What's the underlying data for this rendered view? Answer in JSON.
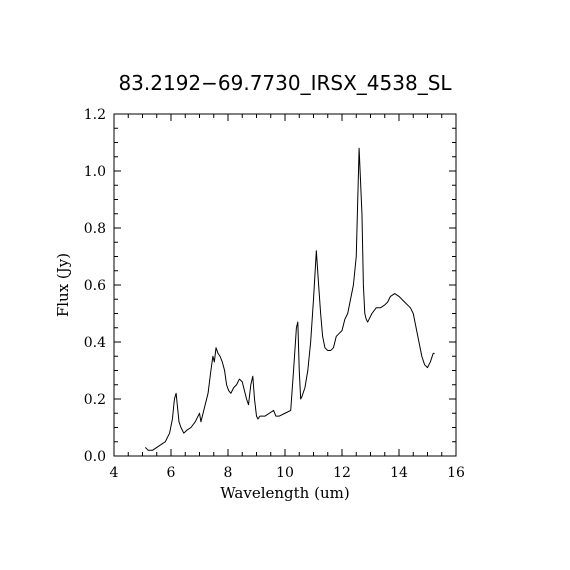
{
  "chart_data": {
    "type": "line",
    "title": "83.2192−69.7730_IRSX_4538_SL",
    "xlabel": "Wavelength (um)",
    "ylabel": "Flux (Jy)",
    "xlim": [
      4,
      16
    ],
    "ylim": [
      0.0,
      1.2
    ],
    "xticks": [
      4,
      6,
      8,
      10,
      12,
      14,
      16
    ],
    "xtick_labels": [
      "4",
      "6",
      "8",
      "10",
      "12",
      "14",
      "16"
    ],
    "yticks": [
      0.0,
      0.2,
      0.4,
      0.6,
      0.8,
      1.0,
      1.2
    ],
    "ytick_labels": [
      "0.0",
      "0.2",
      "0.4",
      "0.6",
      "0.8",
      "1.0",
      "1.2"
    ],
    "grid": false,
    "series": [
      {
        "color": "#000000",
        "x": [
          5.1,
          5.2,
          5.35,
          5.5,
          5.65,
          5.8,
          5.95,
          6.05,
          6.12,
          6.18,
          6.22,
          6.28,
          6.35,
          6.45,
          6.55,
          6.7,
          6.85,
          7.0,
          7.05,
          7.15,
          7.3,
          7.4,
          7.47,
          7.52,
          7.58,
          7.65,
          7.72,
          7.8,
          7.88,
          7.95,
          8.02,
          8.1,
          8.2,
          8.3,
          8.4,
          8.5,
          8.6,
          8.65,
          8.72,
          8.8,
          8.87,
          8.93,
          9.0,
          9.05,
          9.12,
          9.2,
          9.3,
          9.45,
          9.6,
          9.68,
          9.8,
          10.0,
          10.2,
          10.3,
          10.4,
          10.45,
          10.5,
          10.55,
          10.6,
          10.7,
          10.8,
          10.9,
          11.0,
          11.1,
          11.18,
          11.25,
          11.32,
          11.4,
          11.5,
          11.6,
          11.7,
          11.8,
          11.9,
          12.0,
          12.1,
          12.2,
          12.3,
          12.4,
          12.5,
          12.6,
          12.7,
          12.75,
          12.8,
          12.85,
          12.9,
          12.95,
          13.05,
          13.2,
          13.35,
          13.5,
          13.6,
          13.7,
          13.85,
          14.0,
          14.1,
          14.2,
          14.3,
          14.4,
          14.5,
          14.6,
          14.7,
          14.8,
          14.9,
          15.0,
          15.1,
          15.2,
          15.25
        ],
        "y": [
          0.03,
          0.02,
          0.02,
          0.03,
          0.04,
          0.05,
          0.08,
          0.13,
          0.2,
          0.22,
          0.18,
          0.12,
          0.1,
          0.08,
          0.09,
          0.1,
          0.12,
          0.15,
          0.12,
          0.16,
          0.22,
          0.3,
          0.35,
          0.33,
          0.38,
          0.36,
          0.35,
          0.33,
          0.3,
          0.25,
          0.23,
          0.22,
          0.24,
          0.25,
          0.27,
          0.26,
          0.22,
          0.2,
          0.18,
          0.25,
          0.28,
          0.2,
          0.14,
          0.13,
          0.14,
          0.14,
          0.14,
          0.15,
          0.16,
          0.14,
          0.14,
          0.15,
          0.16,
          0.3,
          0.45,
          0.47,
          0.3,
          0.2,
          0.21,
          0.24,
          0.3,
          0.4,
          0.55,
          0.72,
          0.6,
          0.5,
          0.42,
          0.38,
          0.37,
          0.37,
          0.38,
          0.42,
          0.43,
          0.44,
          0.48,
          0.5,
          0.55,
          0.6,
          0.7,
          1.08,
          0.85,
          0.6,
          0.5,
          0.48,
          0.47,
          0.48,
          0.5,
          0.52,
          0.52,
          0.53,
          0.54,
          0.56,
          0.57,
          0.56,
          0.55,
          0.54,
          0.53,
          0.52,
          0.5,
          0.45,
          0.4,
          0.35,
          0.32,
          0.31,
          0.33,
          0.36,
          0.36
        ]
      }
    ]
  }
}
